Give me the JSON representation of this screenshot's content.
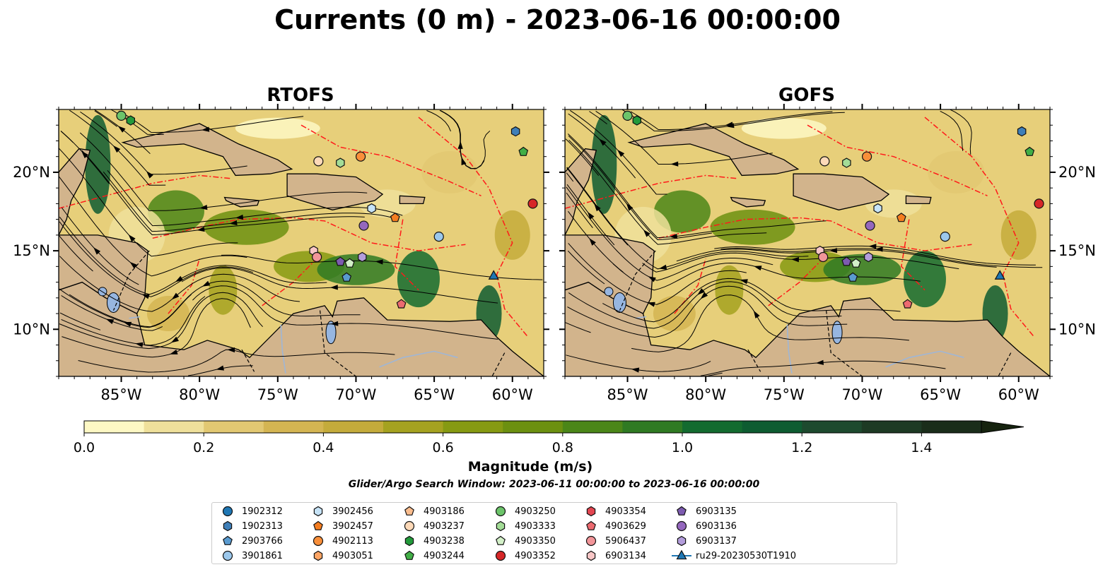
{
  "title": "Currents (0 m) - 2023-06-16 00:00:00",
  "panels": [
    {
      "id": "rtofs",
      "title": "RTOFS"
    },
    {
      "id": "gofs",
      "title": "GOFS"
    }
  ],
  "colorbar": {
    "label": "Magnitude (m/s)",
    "ticks": [
      "0.0",
      "0.2",
      "0.4",
      "0.6",
      "0.8",
      "1.0",
      "1.2",
      "1.4"
    ],
    "colors": [
      "#fdf8c4",
      "#efe09b",
      "#e2c872",
      "#d4b552",
      "#c4ab3b",
      "#a5a220",
      "#869a12",
      "#6c9010",
      "#4b8618",
      "#2f7a23",
      "#136b2f",
      "#0e5c31",
      "#1d4a2e",
      "#1d3a24",
      "#1a2d1a"
    ],
    "extend": "max"
  },
  "window_note": "Glider/Argo Search Window: 2023-06-11 00:00:00 to 2023-06-16 00:00:00",
  "chart_data": [
    {
      "type": "map",
      "title": "RTOFS",
      "variable": "surface current magnitude",
      "units": "m/s",
      "xlim": [
        -89,
        -58
      ],
      "ylim": [
        7,
        24
      ],
      "x_tick_labels": [
        "85°W",
        "80°W",
        "75°W",
        "70°W",
        "65°W",
        "60°W"
      ],
      "y_tick_labels": [
        "10°N",
        "15°N",
        "20°N"
      ],
      "x_ticks": [
        -85,
        -80,
        -75,
        -70,
        -65,
        -60
      ],
      "y_ticks": [
        10,
        15,
        20
      ],
      "color_range": [
        0,
        1.5
      ]
    },
    {
      "type": "map",
      "title": "GOFS",
      "variable": "surface current magnitude",
      "units": "m/s",
      "xlim": [
        -89,
        -58
      ],
      "ylim": [
        7,
        24
      ],
      "x_tick_labels": [
        "85°W",
        "80°W",
        "75°W",
        "70°W",
        "65°W",
        "60°W"
      ],
      "y_tick_labels": [
        "10°N",
        "15°N",
        "20°N"
      ],
      "x_ticks": [
        -85,
        -80,
        -75,
        -70,
        -65,
        -60
      ],
      "y_ticks": [
        10,
        15,
        20
      ],
      "color_range": [
        0,
        1.5
      ]
    }
  ],
  "markers": [
    {
      "id": "1902312",
      "shape": "circle",
      "color": "#1f77b4"
    },
    {
      "id": "1902313",
      "shape": "hexagon",
      "color": "#3f7fb8"
    },
    {
      "id": "2903766",
      "shape": "pentagon",
      "color": "#5a9bd0"
    },
    {
      "id": "3901861",
      "shape": "circle",
      "color": "#9cc8ec"
    },
    {
      "id": "3902456",
      "shape": "hexagon",
      "color": "#c6e3f7"
    },
    {
      "id": "3902457",
      "shape": "pentagon",
      "color": "#f47d20"
    },
    {
      "id": "4902113",
      "shape": "circle",
      "color": "#f98f3a"
    },
    {
      "id": "4903051",
      "shape": "hexagon",
      "color": "#fda565"
    },
    {
      "id": "4903186",
      "shape": "pentagon",
      "color": "#fbbd8e"
    },
    {
      "id": "4903237",
      "shape": "circle",
      "color": "#fdd9b8"
    },
    {
      "id": "4903238",
      "shape": "hexagon",
      "color": "#239a3b"
    },
    {
      "id": "4903244",
      "shape": "pentagon",
      "color": "#41ae46"
    },
    {
      "id": "4903250",
      "shape": "circle",
      "color": "#6cc46a"
    },
    {
      "id": "4903333",
      "shape": "hexagon",
      "color": "#a3dc97"
    },
    {
      "id": "4903350",
      "shape": "pentagon",
      "color": "#d3f0c8"
    },
    {
      "id": "4903352",
      "shape": "circle",
      "color": "#d62728"
    },
    {
      "id": "4903354",
      "shape": "hexagon",
      "color": "#e34651"
    },
    {
      "id": "4903629",
      "shape": "pentagon",
      "color": "#ec6a70"
    },
    {
      "id": "5906437",
      "shape": "circle",
      "color": "#f29599"
    },
    {
      "id": "6903134",
      "shape": "hexagon",
      "color": "#f8c6c6"
    },
    {
      "id": "6903135",
      "shape": "pentagon",
      "color": "#7d5bb0"
    },
    {
      "id": "6903136",
      "shape": "circle",
      "color": "#9467bd"
    },
    {
      "id": "6903137",
      "shape": "hexagon",
      "color": "#b39ddb"
    },
    {
      "id": "ru29-20230530T1910",
      "shape": "triangle",
      "color": "#1f77b4"
    }
  ],
  "observations": {
    "rtofs": [
      {
        "id": "1902313",
        "lon": -59.8,
        "lat": 22.6
      },
      {
        "id": "4903244",
        "lon": -59.3,
        "lat": 21.3
      },
      {
        "id": "4903352",
        "lon": -58.7,
        "lat": 18.0
      },
      {
        "id": "4902113",
        "lon": -69.7,
        "lat": 21.0
      },
      {
        "id": "4903237",
        "lon": -72.4,
        "lat": 20.7
      },
      {
        "id": "4903333",
        "lon": -71.0,
        "lat": 20.6
      },
      {
        "id": "4903250",
        "lon": -85.0,
        "lat": 23.6
      },
      {
        "id": "4903238",
        "lon": -84.4,
        "lat": 23.3
      },
      {
        "id": "3902456",
        "lon": -69.0,
        "lat": 17.7
      },
      {
        "id": "3902457",
        "lon": -67.5,
        "lat": 17.1
      },
      {
        "id": "6903136",
        "lon": -69.5,
        "lat": 16.6
      },
      {
        "id": "3901861",
        "lon": -64.7,
        "lat": 15.9
      },
      {
        "id": "6903134",
        "lon": -72.7,
        "lat": 15.0
      },
      {
        "id": "5906437",
        "lon": -72.5,
        "lat": 14.6
      },
      {
        "id": "6903135",
        "lon": -71.0,
        "lat": 14.3
      },
      {
        "id": "4903350",
        "lon": -70.4,
        "lat": 14.2
      },
      {
        "id": "6903137",
        "lon": -69.6,
        "lat": 14.6
      },
      {
        "id": "2903766",
        "lon": -70.6,
        "lat": 13.3
      },
      {
        "id": "4903629",
        "lon": -67.1,
        "lat": 11.6
      },
      {
        "id": "ru29-20230530T1910",
        "lon": -61.2,
        "lat": 13.4
      }
    ],
    "gofs": [
      {
        "id": "1902313",
        "lon": -59.8,
        "lat": 22.6
      },
      {
        "id": "4903244",
        "lon": -59.3,
        "lat": 21.3
      },
      {
        "id": "4903352",
        "lon": -58.7,
        "lat": 18.0
      },
      {
        "id": "4902113",
        "lon": -69.7,
        "lat": 21.0
      },
      {
        "id": "4903237",
        "lon": -72.4,
        "lat": 20.7
      },
      {
        "id": "4903333",
        "lon": -71.0,
        "lat": 20.6
      },
      {
        "id": "4903250",
        "lon": -85.0,
        "lat": 23.6
      },
      {
        "id": "4903238",
        "lon": -84.4,
        "lat": 23.3
      },
      {
        "id": "3902456",
        "lon": -69.0,
        "lat": 17.7
      },
      {
        "id": "3902457",
        "lon": -67.5,
        "lat": 17.1
      },
      {
        "id": "6903136",
        "lon": -69.5,
        "lat": 16.6
      },
      {
        "id": "3901861",
        "lon": -64.7,
        "lat": 15.9
      },
      {
        "id": "6903134",
        "lon": -72.7,
        "lat": 15.0
      },
      {
        "id": "5906437",
        "lon": -72.5,
        "lat": 14.6
      },
      {
        "id": "6903135",
        "lon": -71.0,
        "lat": 14.3
      },
      {
        "id": "4903350",
        "lon": -70.4,
        "lat": 14.2
      },
      {
        "id": "6903137",
        "lon": -69.6,
        "lat": 14.6
      },
      {
        "id": "2903766",
        "lon": -70.6,
        "lat": 13.3
      },
      {
        "id": "4903629",
        "lon": -67.1,
        "lat": 11.6
      },
      {
        "id": "ru29-20230530T1910",
        "lon": -61.2,
        "lat": 13.4
      }
    ]
  }
}
